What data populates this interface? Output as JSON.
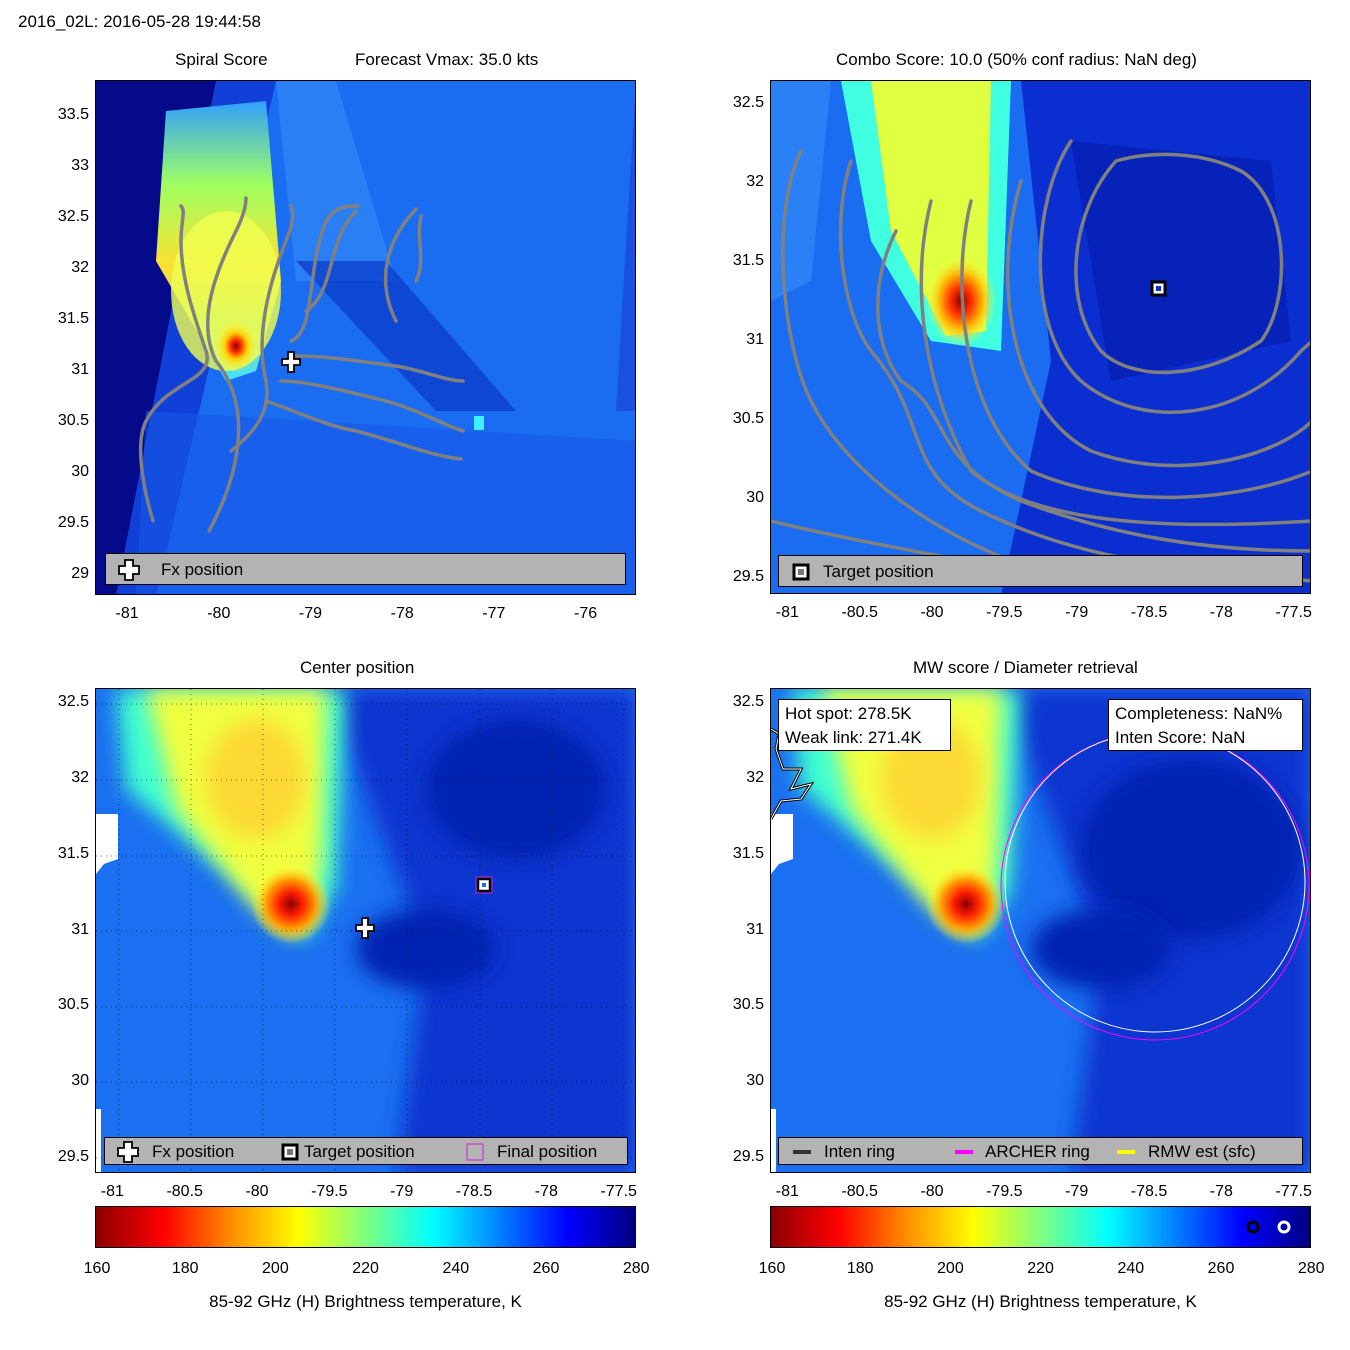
{
  "header": {
    "title": "2016_02L: 2016-05-28 19:44:58"
  },
  "panels": {
    "spiral": {
      "title": "Spiral Score",
      "subtitle": "Forecast Vmax: 35.0 kts",
      "legend": {
        "fx": "Fx position"
      }
    },
    "combo": {
      "title": "Combo Score: 10.0  (50% conf radius: NaN deg)",
      "legend": {
        "target": "Target position"
      }
    },
    "center": {
      "title": "Center position",
      "legend": {
        "fx": "Fx position",
        "target": "Target position",
        "final": "Final position"
      }
    },
    "mw": {
      "title": "MW score / Diameter retrieval",
      "hot_spot": "Hot spot: 278.5K",
      "weak_link": "Weak link: 271.4K",
      "completeness": "Completeness: NaN%",
      "inten_score": "Inten Score: NaN",
      "legend": {
        "inten": "Inten ring",
        "archer": "ARCHER ring",
        "rmw": "RMW est (sfc)"
      }
    }
  },
  "colorbar": {
    "label": "85-92 GHz (H) Brightness temperature, K",
    "ticks": [
      "160",
      "180",
      "200",
      "220",
      "240",
      "260",
      "280"
    ],
    "colors": [
      "#8b0000",
      "#ff0000",
      "#ff8c00",
      "#ffff00",
      "#7fff7f",
      "#00ffff",
      "#0080ff",
      "#0000ff",
      "#00007f"
    ]
  },
  "chart_data": [
    {
      "type": "heatmap",
      "panel": "Spiral Score",
      "x_ticks": [
        "-81",
        "-80",
        "-79",
        "-78",
        "-77",
        "-76"
      ],
      "y_ticks": [
        "33.5",
        "33",
        "32.5",
        "32",
        "31.5",
        "31",
        "30.5",
        "30",
        "29.5",
        "29"
      ],
      "xlim": [
        -81.35,
        -75.45
      ],
      "ylim": [
        28.8,
        33.85
      ],
      "fx_position": {
        "lon": -79.25,
        "lat": 31.0
      }
    },
    {
      "type": "heatmap",
      "panel": "Combo Score",
      "x_ticks": [
        "-81",
        "-80.5",
        "-80",
        "-79.5",
        "-79",
        "-78.5",
        "-78",
        "-77.5"
      ],
      "y_ticks": [
        "32.5",
        "32",
        "31.5",
        "31",
        "30.5",
        "30",
        "29.5"
      ],
      "xlim": [
        -81.12,
        -77.38
      ],
      "ylim": [
        29.4,
        32.65
      ],
      "target_position": {
        "lon": -78.48,
        "lat": 31.3
      }
    },
    {
      "type": "heatmap",
      "panel": "Center position",
      "x_ticks": [
        "-81",
        "-80.5",
        "-80",
        "-79.5",
        "-79",
        "-78.5",
        "-78",
        "-77.5"
      ],
      "y_ticks": [
        "32.5",
        "32",
        "31.5",
        "31",
        "30.5",
        "30",
        "29.5"
      ],
      "xlim": [
        -81.12,
        -77.38
      ],
      "ylim": [
        29.4,
        32.6
      ],
      "fx_position": {
        "lon": -79.27,
        "lat": 31.0
      },
      "target_position": {
        "lon": -78.48,
        "lat": 31.3
      },
      "final_position": {
        "lon": -78.48,
        "lat": 31.3
      }
    },
    {
      "type": "heatmap",
      "panel": "MW score / Diameter retrieval",
      "x_ticks": [
        "-81",
        "-80.5",
        "-80",
        "-79.5",
        "-79",
        "-78.5",
        "-78",
        "-77.5"
      ],
      "y_ticks": [
        "32.5",
        "32",
        "31.5",
        "31",
        "30.5",
        "30",
        "29.5"
      ],
      "xlim": [
        -81.12,
        -77.38
      ],
      "ylim": [
        29.4,
        32.6
      ],
      "archer_ring": {
        "center_lon": -78.45,
        "center_lat": 31.3,
        "radius_deg": 1.0
      }
    }
  ]
}
